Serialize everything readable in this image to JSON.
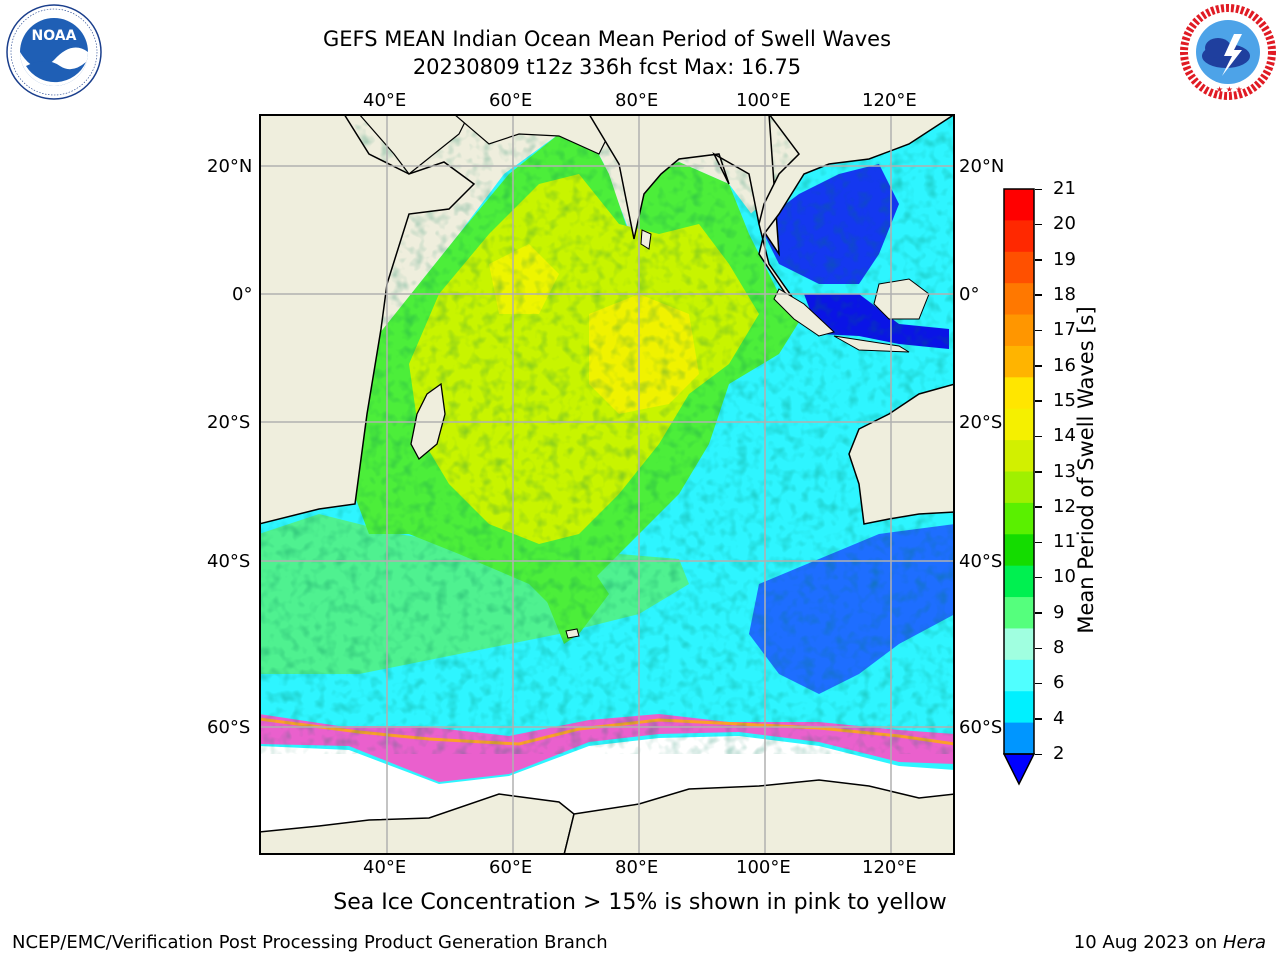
{
  "title": {
    "line1": "GEFS MEAN Indian Ocean Mean Period of Swell Waves",
    "line2": "20230809 t12z 336h fcst   Max: 16.75"
  },
  "logos": {
    "left": {
      "name": "noaa-logo",
      "text": "NOAA",
      "ring_text": "NATIONAL OCEANIC AND ATMOSPHERIC ADMINISTRATION · U.S. DEPARTMENT OF COMMERCE"
    },
    "right": {
      "name": "nws-logo",
      "ring_text": "NATIONAL WEATHER SERVICE"
    }
  },
  "map": {
    "lon_ticks_top": [
      "40°E",
      "60°E",
      "80°E",
      "100°E",
      "120°E"
    ],
    "lon_ticks_bottom": [
      "40°E",
      "60°E",
      "80°E",
      "100°E",
      "120°E"
    ],
    "lat_ticks_left": [
      "20°N",
      "0°",
      "20°S",
      "40°S",
      "60°S"
    ],
    "lat_ticks_right": [
      "20°N",
      "0°",
      "20°S",
      "40°S",
      "60°S"
    ],
    "land_color": "#efeedd",
    "grid_color": "#b0b0b0"
  },
  "colorbar": {
    "label": "Mean Period of Swell Waves [s]",
    "ticks": [
      "21",
      "20",
      "19",
      "18",
      "17",
      "16",
      "15",
      "14",
      "13",
      "12",
      "11",
      "10",
      "9",
      "8",
      "6",
      "4",
      "2"
    ],
    "colors_top_to_bottom": [
      "#ff0000",
      "#ff2800",
      "#ff5000",
      "#ff7800",
      "#ff9600",
      "#ffb400",
      "#ffe600",
      "#f5f000",
      "#d2f000",
      "#a0f000",
      "#5af000",
      "#14dc00",
      "#00f050",
      "#55ff7d",
      "#a0ffe0",
      "#50ffff",
      "#00f0ff",
      "#0096ff"
    ],
    "extend_color": "#0000ff"
  },
  "note": "Sea Ice Concentration > 15% is shown in pink to yellow",
  "footer": {
    "left": "NCEP/EMC/Verification Post Processing Product Generation Branch",
    "right_prefix": "10 Aug 2023 on ",
    "right_machine": "Hera"
  }
}
